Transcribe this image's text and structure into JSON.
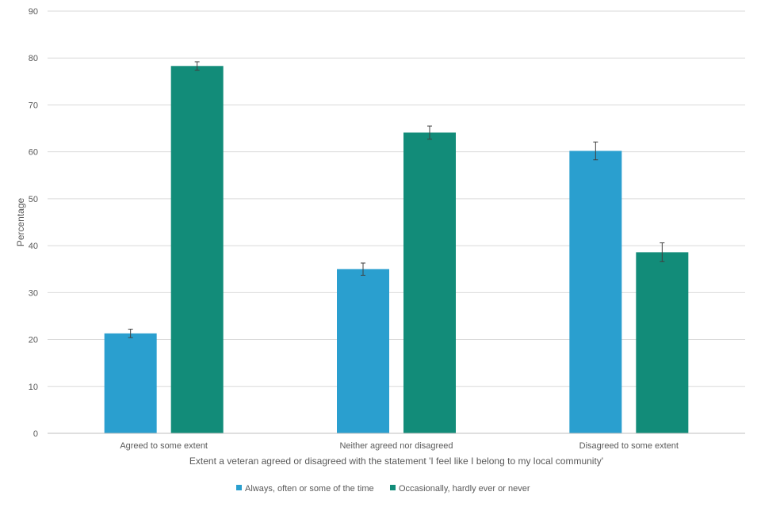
{
  "chart_data": {
    "type": "bar",
    "title": "",
    "xlabel": "Extent a veteran agreed or disagreed with the statement 'I feel like I belong to my local community'",
    "ylabel": "Percentage",
    "ylim": [
      0,
      90
    ],
    "yticks": [
      0,
      10,
      20,
      30,
      40,
      50,
      60,
      70,
      80,
      90
    ],
    "grid": true,
    "legend_position": "bottom",
    "categories": [
      "Agreed to some extent",
      "Neither agreed nor disagreed",
      "Disagreed to some extent"
    ],
    "series": [
      {
        "name": "Always, often or some of the time",
        "color": "#2a9fcf",
        "values": [
          21.3,
          35.0,
          60.2
        ],
        "error_low": [
          20.4,
          33.7,
          58.3
        ],
        "error_high": [
          22.2,
          36.3,
          62.1
        ]
      },
      {
        "name": "Occasionally, hardly ever or never",
        "color": "#128c79",
        "values": [
          78.3,
          64.1,
          38.6
        ],
        "error_low": [
          77.4,
          62.7,
          36.6
        ],
        "error_high": [
          79.2,
          65.5,
          40.6
        ]
      }
    ]
  }
}
